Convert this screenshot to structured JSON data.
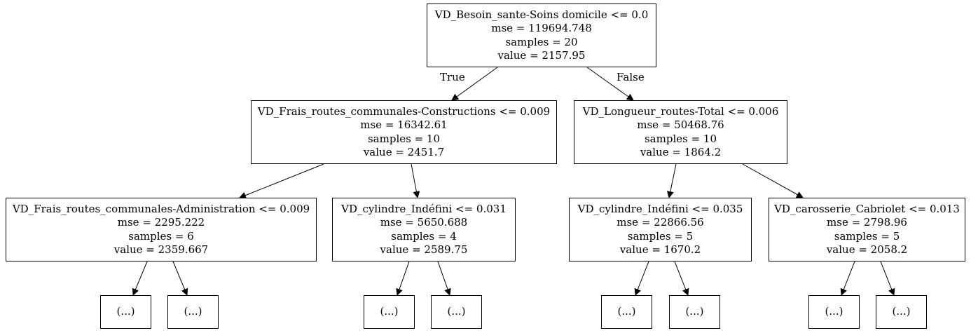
{
  "tree": {
    "root": {
      "condition": "VD_Besoin_sante-Soins domicile <= 0.0",
      "mse": "mse = 119694.748",
      "samples": "samples = 20",
      "value": "value = 2157.95"
    },
    "edge_labels": {
      "true": "True",
      "false": "False"
    },
    "left": {
      "condition": "VD_Frais_routes_communales-Constructions <= 0.009",
      "mse": "mse = 16342.61",
      "samples": "samples = 10",
      "value": "value = 2451.7"
    },
    "right": {
      "condition": "VD_Longueur_routes-Total <= 0.006",
      "mse": "mse = 50468.76",
      "samples": "samples = 10",
      "value": "value = 1864.2"
    },
    "ll": {
      "condition": "VD_Frais_routes_communales-Administration <= 0.009",
      "mse": "mse = 2295.222",
      "samples": "samples = 6",
      "value": "value = 2359.667"
    },
    "lr": {
      "condition": "VD_cylindre_Indéfini <= 0.031",
      "mse": "mse = 5650.688",
      "samples": "samples = 4",
      "value": "value = 2589.75"
    },
    "rl": {
      "condition": "VD_cylindre_Indéfini <= 0.035",
      "mse": "mse = 22866.56",
      "samples": "samples = 5",
      "value": "value = 1670.2"
    },
    "rr": {
      "condition": "VD_carosserie_Cabriolet <= 0.013",
      "mse": "mse = 2798.96",
      "samples": "samples = 5",
      "value": "value = 2058.2"
    },
    "truncated_label": "(...)"
  }
}
